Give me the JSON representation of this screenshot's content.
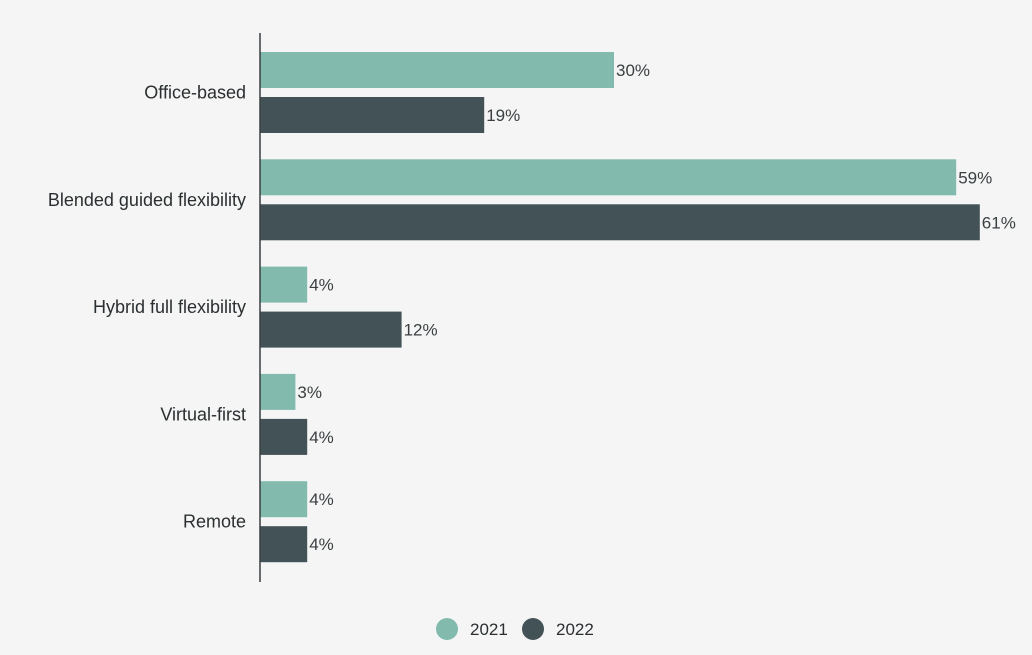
{
  "chart_data": {
    "type": "bar",
    "orientation": "horizontal",
    "categories": [
      "Office-based",
      "Blended guided flexibility",
      "Hybrid full flexibility",
      "Virtual-first",
      "Remote"
    ],
    "series": [
      {
        "name": "2021",
        "color": "#82bbae",
        "values": [
          30,
          59,
          4,
          3,
          4
        ],
        "labels": [
          "30%",
          "59%",
          "4%",
          "3%",
          "4%"
        ]
      },
      {
        "name": "2022",
        "color": "#435256",
        "values": [
          19,
          61,
          12,
          4,
          4
        ],
        "labels": [
          "19%",
          "61%",
          "12%",
          "4%",
          "4%"
        ]
      }
    ],
    "xlim": [
      0,
      61
    ],
    "unit": "%",
    "grid": false,
    "legend_position": "bottom-center"
  }
}
